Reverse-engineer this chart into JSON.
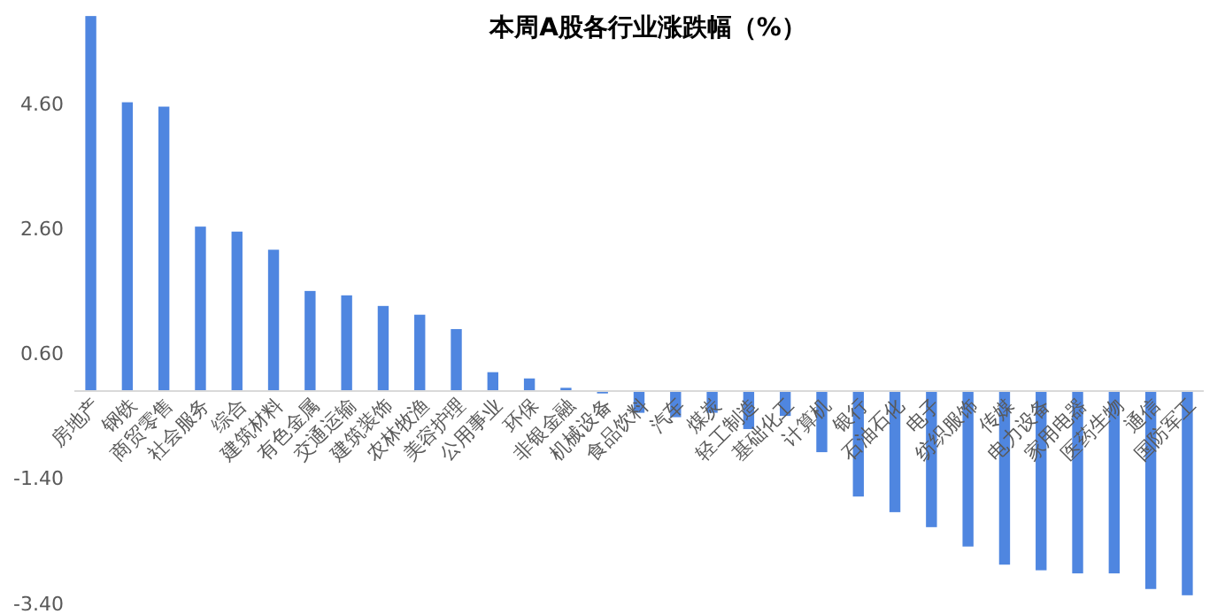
{
  "chart_data": {
    "type": "bar",
    "title": "本周A股各行业涨跌幅（%）",
    "categories": [
      "房地产",
      "钢铁",
      "商贸零售",
      "社会服务",
      "综合",
      "建筑材料",
      "有色金属",
      "交通运输",
      "建筑装饰",
      "农林牧渔",
      "美容护理",
      "公用事业",
      "环保",
      "非银金融",
      "机械设备",
      "食品饮料",
      "汽车",
      "煤炭",
      "轻工制造",
      "基础化工",
      "计算机",
      "银行",
      "石油石化",
      "电子",
      "纺织服饰",
      "传媒",
      "电力设备",
      "家用电器",
      "医药生物",
      "通信",
      "国防军工"
    ],
    "values": [
      6.0,
      4.62,
      4.55,
      2.63,
      2.55,
      2.26,
      1.6,
      1.53,
      1.36,
      1.22,
      0.99,
      0.3,
      0.2,
      0.05,
      -0.04,
      -0.35,
      -0.42,
      -0.35,
      -0.61,
      -0.4,
      -0.98,
      -1.69,
      -1.94,
      -2.18,
      -2.49,
      -2.78,
      -2.87,
      -2.92,
      -2.92,
      -3.17,
      -3.27
    ],
    "color": "#4f86e0",
    "ylim": [
      -3.4,
      6.2
    ],
    "yticks": [
      {
        "value": 4.6,
        "label": "4.60"
      },
      {
        "value": 2.6,
        "label": "2.60"
      },
      {
        "value": 0.6,
        "label": "0.60"
      },
      {
        "value": -1.4,
        "label": "-1.40"
      },
      {
        "value": -3.4,
        "label": "-3.40"
      }
    ],
    "grid": false
  }
}
